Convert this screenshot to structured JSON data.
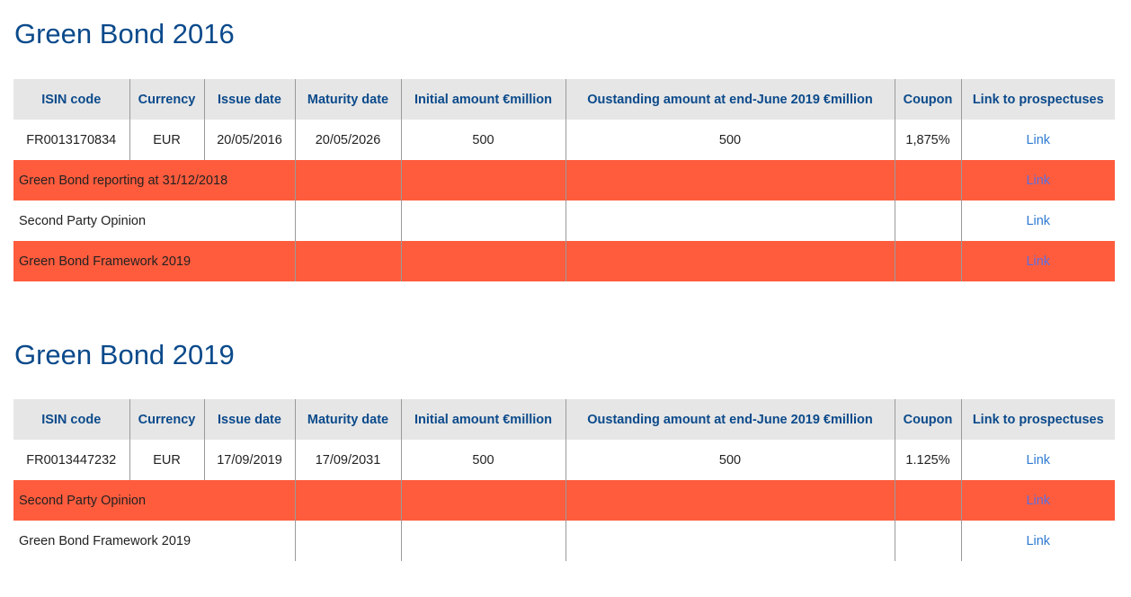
{
  "headers": [
    "ISIN code",
    "Currency",
    "Issue date",
    "Maturity date",
    "Initial amount €million",
    "Oustanding amount at end-June 2019 €million",
    "Coupon",
    "Link to prospectuses"
  ],
  "bond2016": {
    "title": "Green Bond 2016",
    "row": {
      "isin": "FR0013170834",
      "currency": "EUR",
      "issue": "20/05/2016",
      "maturity": "20/05/2026",
      "initial": "500",
      "outstanding": "500",
      "coupon": "1,875%",
      "link": "Link"
    },
    "docs": [
      {
        "label": "Green Bond reporting at 31/12/2018",
        "link": "Link"
      },
      {
        "label": "Second Party Opinion",
        "link": "Link"
      },
      {
        "label": "Green Bond Framework 2019",
        "link": "Link"
      }
    ]
  },
  "bond2019": {
    "title": "Green Bond 2019",
    "row": {
      "isin": "FR0013447232",
      "currency": "EUR",
      "issue": "17/09/2019",
      "maturity": "17/09/2031",
      "initial": "500",
      "outstanding": "500",
      "coupon": "1.125%",
      "link": "Link"
    },
    "docs": [
      {
        "label": "Second Party Opinion",
        "link": "Link"
      },
      {
        "label": "Green Bond Framework 2019",
        "link": "Link"
      }
    ]
  },
  "colors": {
    "title": "#0b4a8b",
    "header_bg": "#e6e6e6",
    "highlight_row": "#ff5c3d",
    "link": "#2f7ad1"
  }
}
